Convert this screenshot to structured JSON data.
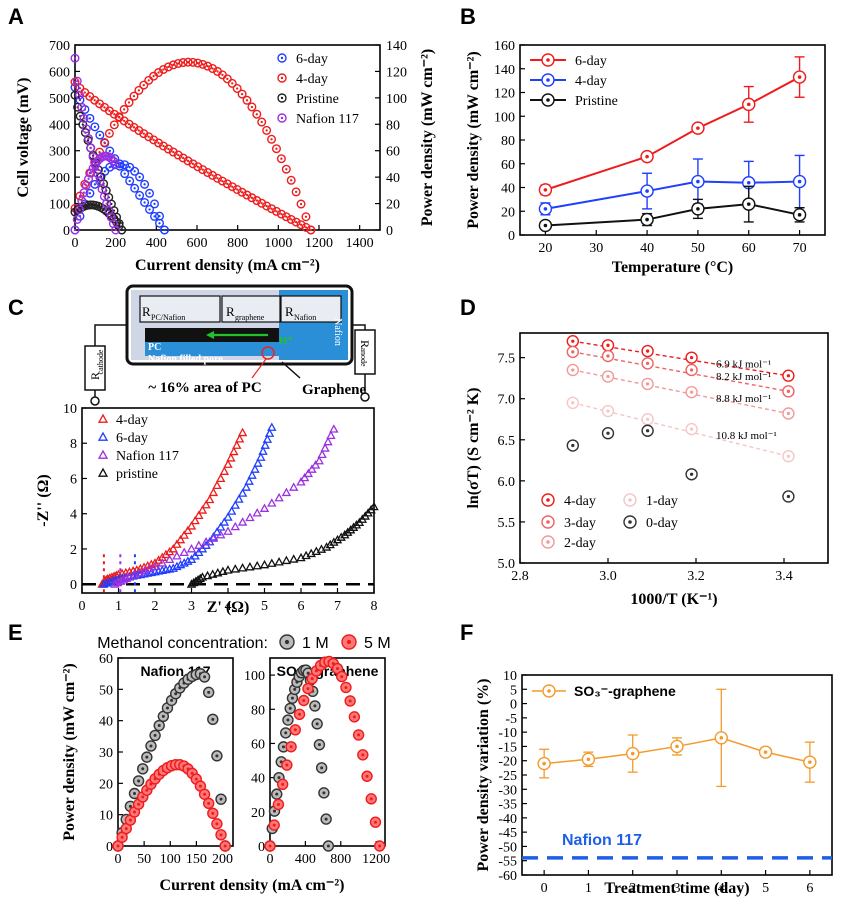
{
  "panel_letters": [
    "A",
    "B",
    "C",
    "D",
    "E",
    "F"
  ],
  "chart_data": [
    {
      "id": "A",
      "type": "scatter",
      "xlabel": "Current density (mA cm⁻²)",
      "ylabel": "Cell voltage (mV)",
      "y2label": "Power density (mW cm⁻²)",
      "xlim": [
        0,
        1500
      ],
      "ylim": [
        0,
        700
      ],
      "y2lim": [
        0,
        140
      ],
      "xticks": [
        0,
        200,
        400,
        600,
        800,
        1000,
        1200,
        1400
      ],
      "yticks": [
        0,
        100,
        200,
        300,
        400,
        500,
        600,
        700
      ],
      "y2ticks": [
        0,
        20,
        40,
        60,
        80,
        100,
        120,
        140
      ],
      "legend": [
        "6-day",
        "4-day",
        "Pristine",
        "Nafion 117"
      ],
      "colors": [
        "#1f3fff",
        "#ee1c1c",
        "#222222",
        "#9b30e0"
      ],
      "series": [
        {
          "name": "6-day",
          "max_current": 440,
          "ocv": 540,
          "peak_power": 50,
          "peak_current": 220
        },
        {
          "name": "4-day",
          "max_current": 1160,
          "ocv": 560,
          "peak_power": 127,
          "peak_current": 560
        },
        {
          "name": "Pristine",
          "max_current": 230,
          "ocv": 510,
          "peak_power": 19,
          "peak_current": 80
        },
        {
          "name": "Nafion 117",
          "max_current": 200,
          "ocv": 650,
          "peak_power": 56,
          "peak_current": 150
        }
      ]
    },
    {
      "id": "B",
      "type": "line",
      "xlabel": "Temperature (°C)",
      "ylabel": "Power density (mW cm⁻²)",
      "xlim": [
        15,
        75
      ],
      "ylim": [
        0,
        160
      ],
      "xticks": [
        20,
        30,
        40,
        50,
        60,
        70
      ],
      "yticks": [
        0,
        20,
        40,
        60,
        80,
        100,
        120,
        140,
        160
      ],
      "x": [
        20,
        40,
        50,
        60,
        70
      ],
      "series": [
        {
          "name": "6-day",
          "color": "#ee1c1c",
          "values": [
            38,
            66,
            90,
            110,
            133
          ],
          "err": [
            4,
            3,
            3,
            15,
            17
          ]
        },
        {
          "name": "4-day",
          "color": "#1f3fff",
          "values": [
            22,
            37,
            45,
            44,
            45
          ],
          "err": [
            5,
            15,
            19,
            18,
            22
          ]
        },
        {
          "name": "Pristine",
          "color": "#111111",
          "values": [
            8,
            13,
            22,
            26,
            17
          ],
          "err": [
            3,
            5,
            8,
            15,
            6
          ]
        }
      ]
    },
    {
      "id": "C",
      "type": "scatter",
      "xlabel": "Z' (Ω)",
      "ylabel": "-Z'' (Ω)",
      "xlim": [
        0,
        8
      ],
      "ylim": [
        -0.5,
        10
      ],
      "xticks": [
        0,
        1,
        2,
        3,
        4,
        5,
        6,
        7,
        8
      ],
      "yticks": [
        0,
        2,
        4,
        6,
        8,
        10
      ],
      "legend": [
        "4-day",
        "6-day",
        "Nafion 117",
        "pristine"
      ],
      "colors": [
        "#ee1c1c",
        "#1f3fff",
        "#9b30e0",
        "#111111"
      ],
      "series": [
        {
          "name": "4-day",
          "points": [
            [
              0.55,
              0
            ],
            [
              0.7,
              0.3
            ],
            [
              1.0,
              0.55
            ],
            [
              1.5,
              0.8
            ],
            [
              2.0,
              1.2
            ],
            [
              2.5,
              2.0
            ],
            [
              3.0,
              3.3
            ],
            [
              3.5,
              4.8
            ],
            [
              4.0,
              6.8
            ],
            [
              4.4,
              8.6
            ]
          ]
        },
        {
          "name": "6-day",
          "points": [
            [
              0.6,
              0
            ],
            [
              1.0,
              0.3
            ],
            [
              1.5,
              0.5
            ],
            [
              2.0,
              0.7
            ],
            [
              2.5,
              0.9
            ],
            [
              3.0,
              1.4
            ],
            [
              3.5,
              2.4
            ],
            [
              4.0,
              3.8
            ],
            [
              4.5,
              5.5
            ],
            [
              4.9,
              7.2
            ],
            [
              5.2,
              8.9
            ]
          ]
        },
        {
          "name": "Nafion 117",
          "points": [
            [
              0.9,
              0
            ],
            [
              1.3,
              0.4
            ],
            [
              2.0,
              1.0
            ],
            [
              3.0,
              2.0
            ],
            [
              4.0,
              3.0
            ],
            [
              5.0,
              4.3
            ],
            [
              6.0,
              5.8
            ],
            [
              6.5,
              7.0
            ],
            [
              6.9,
              8.8
            ]
          ]
        },
        {
          "name": "pristine",
          "points": [
            [
              3.0,
              0
            ],
            [
              3.3,
              0.4
            ],
            [
              4.0,
              0.8
            ],
            [
              5.0,
              1.1
            ],
            [
              6.0,
              1.5
            ],
            [
              6.7,
              2.1
            ],
            [
              7.2,
              2.8
            ],
            [
              7.6,
              3.5
            ],
            [
              8.0,
              4.4
            ]
          ]
        }
      ],
      "schematic": {
        "labels": [
          "R",
          "PC/Nafion",
          "R",
          "graphene",
          "R",
          "Nafion",
          "Nafion",
          "PC",
          "Nafion filled pore",
          "H⁺",
          "R",
          "cathode",
          "R",
          "anode",
          "~ 16% area of PC",
          "Graphene"
        ]
      }
    },
    {
      "id": "D",
      "type": "scatter",
      "xlabel": "1000/T (K⁻¹)",
      "ylabel": "ln(σT) (S cm⁻² K)",
      "xlim": [
        2.8,
        3.5
      ],
      "ylim": [
        5.0,
        7.8
      ],
      "xticks": [
        2.8,
        3.0,
        3.2,
        3.4
      ],
      "yticks": [
        5.0,
        5.5,
        6.0,
        6.5,
        7.0,
        7.5
      ],
      "x": [
        2.92,
        3.0,
        3.09,
        3.19,
        3.41
      ],
      "series": [
        {
          "name": "4-day",
          "color": "#ee1c1c",
          "values": [
            7.7,
            7.65,
            7.58,
            7.5,
            7.28
          ],
          "Ea": "6.9 kJ mol⁻¹"
        },
        {
          "name": "3-day",
          "color": "#ee6464",
          "values": [
            7.57,
            7.52,
            7.43,
            7.35,
            7.09
          ],
          "Ea": "8.2 kJ mol⁻¹"
        },
        {
          "name": "2-day",
          "color": "#f29a9a",
          "values": [
            7.35,
            7.27,
            7.18,
            7.08,
            6.82
          ],
          "Ea": "8.8 kJ mol⁻¹"
        },
        {
          "name": "1-day",
          "color": "#f6c6c6",
          "values": [
            6.95,
            6.85,
            6.75,
            6.63,
            6.3
          ],
          "Ea": "10.8 kJ mol⁻¹"
        },
        {
          "name": "0-day",
          "color": "#333333",
          "values": [
            6.43,
            6.58,
            6.61,
            6.08,
            5.81
          ],
          "Ea": ""
        }
      ]
    },
    {
      "id": "E",
      "type": "scatter",
      "title": "Methanol concentration:",
      "xlabel": "Current density (mA cm⁻²)",
      "ylabel": "Power density (mW cm⁻²)",
      "legend": [
        "1 M",
        "5 M"
      ],
      "colors": [
        "#333333",
        "#ee1c1c"
      ],
      "subplots": [
        {
          "label": "Nafion 117",
          "xlim": [
            0,
            220
          ],
          "ylim": [
            0,
            60
          ],
          "xticks": [
            0,
            50,
            100,
            150,
            200
          ],
          "yticks": [
            0,
            10,
            20,
            30,
            40,
            50,
            60
          ],
          "series": [
            {
              "name": "1 M",
              "max_current": 205,
              "peak_power": 55,
              "peak_current": 160
            },
            {
              "name": "5 M",
              "max_current": 205,
              "peak_power": 26,
              "peak_current": 115
            }
          ]
        },
        {
          "label": "SO₃⁻-graphene",
          "xlim": [
            0,
            1300
          ],
          "ylim": [
            0,
            110
          ],
          "xticks": [
            0,
            400,
            800,
            1200
          ],
          "yticks": [
            0,
            20,
            40,
            60,
            80,
            100
          ],
          "series": [
            {
              "name": "1 M",
              "max_current": 660,
              "peak_power": 103,
              "peak_current": 400
            },
            {
              "name": "5 M",
              "max_current": 1240,
              "peak_power": 108,
              "peak_current": 660
            }
          ]
        }
      ]
    },
    {
      "id": "F",
      "type": "line",
      "xlabel": "Treatment time (day)",
      "ylabel": "Power density variation (%)",
      "xlim": [
        -0.5,
        6.5
      ],
      "ylim": [
        -60,
        10
      ],
      "xticks": [
        0,
        1,
        2,
        3,
        4,
        5,
        6
      ],
      "yticks": [
        -60,
        -55,
        -50,
        -45,
        -40,
        -35,
        -30,
        -25,
        -20,
        -15,
        -10,
        -5,
        0,
        5,
        10
      ],
      "x": [
        0,
        1,
        2,
        3,
        4,
        5,
        6
      ],
      "series": [
        {
          "name": "SO₃⁻-graphene",
          "color": "#f39a2c",
          "values": [
            -21,
            -19.5,
            -17.5,
            -15,
            -12,
            -17,
            -20.5
          ],
          "err": [
            5,
            2.5,
            6.5,
            3,
            17,
            1.5,
            7
          ]
        }
      ],
      "reference": {
        "name": "Nafion 117",
        "value": -54,
        "color": "#1f5fe8"
      }
    }
  ]
}
